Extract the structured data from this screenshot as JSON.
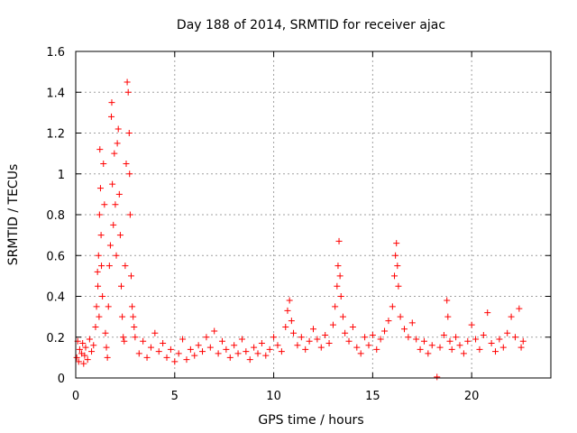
{
  "chart_data": {
    "type": "scatter",
    "title": "Day 188 of 2014, SRMTID for receiver ajac",
    "xlabel": "GPS time / hours",
    "ylabel": "SRMTID / TECUs",
    "xlim": [
      0,
      24
    ],
    "ylim": [
      0,
      1.6
    ],
    "x_ticks": [
      0,
      5,
      10,
      15,
      20
    ],
    "x_tick_labels": [
      "0",
      "5",
      "10",
      "15",
      "20"
    ],
    "y_ticks": [
      0,
      0.2,
      0.4,
      0.6,
      0.8,
      1.0,
      1.2,
      1.4,
      1.6
    ],
    "y_tick_labels": [
      "0",
      "0.2",
      "0.4",
      "0.6",
      "0.8",
      "1",
      "1.2",
      "1.4",
      "1.6"
    ],
    "grid": true,
    "marker": "plus",
    "series": [
      {
        "name": "SRMTID",
        "color": "#ff0000",
        "points": [
          [
            0.05,
            0.1
          ],
          [
            0.1,
            0.18
          ],
          [
            0.15,
            0.08
          ],
          [
            0.2,
            0.14
          ],
          [
            0.3,
            0.12
          ],
          [
            0.35,
            0.17
          ],
          [
            0.4,
            0.07
          ],
          [
            0.45,
            0.11
          ],
          [
            0.5,
            0.15
          ],
          [
            0.6,
            0.09
          ],
          [
            0.7,
            0.19
          ],
          [
            0.8,
            0.13
          ],
          [
            0.9,
            0.16
          ],
          [
            1.0,
            0.25
          ],
          [
            1.05,
            0.35
          ],
          [
            1.1,
            0.52
          ],
          [
            1.12,
            0.45
          ],
          [
            1.15,
            0.6
          ],
          [
            1.18,
            0.3
          ],
          [
            1.2,
            0.8
          ],
          [
            1.22,
            1.12
          ],
          [
            1.25,
            0.93
          ],
          [
            1.28,
            0.7
          ],
          [
            1.3,
            0.55
          ],
          [
            1.35,
            0.4
          ],
          [
            1.4,
            1.05
          ],
          [
            1.45,
            0.85
          ],
          [
            1.5,
            0.22
          ],
          [
            1.55,
            0.15
          ],
          [
            1.6,
            0.1
          ],
          [
            1.65,
            0.35
          ],
          [
            1.7,
            0.55
          ],
          [
            1.75,
            0.65
          ],
          [
            1.8,
            1.28
          ],
          [
            1.82,
            1.35
          ],
          [
            1.85,
            0.95
          ],
          [
            1.9,
            0.75
          ],
          [
            1.95,
            1.1
          ],
          [
            2.0,
            0.85
          ],
          [
            2.05,
            0.6
          ],
          [
            2.1,
            1.15
          ],
          [
            2.15,
            1.22
          ],
          [
            2.2,
            0.9
          ],
          [
            2.25,
            0.7
          ],
          [
            2.3,
            0.45
          ],
          [
            2.35,
            0.3
          ],
          [
            2.4,
            0.2
          ],
          [
            2.45,
            0.18
          ],
          [
            2.5,
            0.55
          ],
          [
            2.55,
            1.05
          ],
          [
            2.6,
            1.45
          ],
          [
            2.65,
            1.4
          ],
          [
            2.7,
            1.2
          ],
          [
            2.72,
            1.0
          ],
          [
            2.75,
            0.8
          ],
          [
            2.8,
            0.5
          ],
          [
            2.85,
            0.35
          ],
          [
            2.9,
            0.3
          ],
          [
            2.95,
            0.25
          ],
          [
            3.0,
            0.2
          ],
          [
            3.2,
            0.12
          ],
          [
            3.4,
            0.18
          ],
          [
            3.6,
            0.1
          ],
          [
            3.8,
            0.15
          ],
          [
            4.0,
            0.22
          ],
          [
            4.2,
            0.13
          ],
          [
            4.4,
            0.17
          ],
          [
            4.6,
            0.1
          ],
          [
            4.8,
            0.14
          ],
          [
            5.0,
            0.08
          ],
          [
            5.2,
            0.12
          ],
          [
            5.4,
            0.19
          ],
          [
            5.6,
            0.09
          ],
          [
            5.8,
            0.14
          ],
          [
            6.0,
            0.11
          ],
          [
            6.2,
            0.16
          ],
          [
            6.4,
            0.13
          ],
          [
            6.6,
            0.2
          ],
          [
            6.8,
            0.15
          ],
          [
            7.0,
            0.23
          ],
          [
            7.2,
            0.12
          ],
          [
            7.4,
            0.18
          ],
          [
            7.6,
            0.14
          ],
          [
            7.8,
            0.1
          ],
          [
            8.0,
            0.16
          ],
          [
            8.2,
            0.12
          ],
          [
            8.4,
            0.19
          ],
          [
            8.6,
            0.13
          ],
          [
            8.8,
            0.09
          ],
          [
            9.0,
            0.15
          ],
          [
            9.2,
            0.12
          ],
          [
            9.4,
            0.17
          ],
          [
            9.6,
            0.11
          ],
          [
            9.8,
            0.14
          ],
          [
            10.0,
            0.2
          ],
          [
            10.2,
            0.16
          ],
          [
            10.4,
            0.13
          ],
          [
            10.6,
            0.25
          ],
          [
            10.7,
            0.33
          ],
          [
            10.8,
            0.38
          ],
          [
            10.9,
            0.28
          ],
          [
            11.0,
            0.22
          ],
          [
            11.2,
            0.16
          ],
          [
            11.4,
            0.2
          ],
          [
            11.6,
            0.14
          ],
          [
            11.8,
            0.18
          ],
          [
            12.0,
            0.24
          ],
          [
            12.2,
            0.19
          ],
          [
            12.4,
            0.15
          ],
          [
            12.6,
            0.21
          ],
          [
            12.8,
            0.17
          ],
          [
            13.0,
            0.26
          ],
          [
            13.1,
            0.35
          ],
          [
            13.2,
            0.45
          ],
          [
            13.25,
            0.55
          ],
          [
            13.3,
            0.67
          ],
          [
            13.35,
            0.5
          ],
          [
            13.4,
            0.4
          ],
          [
            13.5,
            0.3
          ],
          [
            13.6,
            0.22
          ],
          [
            13.8,
            0.18
          ],
          [
            14.0,
            0.25
          ],
          [
            14.2,
            0.15
          ],
          [
            14.4,
            0.12
          ],
          [
            14.6,
            0.2
          ],
          [
            14.8,
            0.16
          ],
          [
            15.0,
            0.21
          ],
          [
            15.2,
            0.14
          ],
          [
            15.4,
            0.19
          ],
          [
            15.6,
            0.23
          ],
          [
            15.8,
            0.28
          ],
          [
            16.0,
            0.35
          ],
          [
            16.1,
            0.5
          ],
          [
            16.15,
            0.6
          ],
          [
            16.2,
            0.66
          ],
          [
            16.25,
            0.55
          ],
          [
            16.3,
            0.45
          ],
          [
            16.4,
            0.3
          ],
          [
            16.6,
            0.24
          ],
          [
            16.8,
            0.2
          ],
          [
            17.0,
            0.27
          ],
          [
            17.2,
            0.19
          ],
          [
            17.4,
            0.14
          ],
          [
            17.6,
            0.18
          ],
          [
            17.8,
            0.12
          ],
          [
            18.0,
            0.16
          ],
          [
            18.25,
            0.005
          ],
          [
            18.4,
            0.15
          ],
          [
            18.6,
            0.21
          ],
          [
            18.75,
            0.38
          ],
          [
            18.8,
            0.3
          ],
          [
            18.9,
            0.18
          ],
          [
            19.0,
            0.14
          ],
          [
            19.2,
            0.2
          ],
          [
            19.4,
            0.16
          ],
          [
            19.6,
            0.12
          ],
          [
            19.8,
            0.18
          ],
          [
            20.0,
            0.26
          ],
          [
            20.2,
            0.19
          ],
          [
            20.4,
            0.14
          ],
          [
            20.6,
            0.21
          ],
          [
            20.8,
            0.32
          ],
          [
            21.0,
            0.17
          ],
          [
            21.2,
            0.13
          ],
          [
            21.4,
            0.19
          ],
          [
            21.6,
            0.15
          ],
          [
            21.8,
            0.22
          ],
          [
            22.0,
            0.3
          ],
          [
            22.2,
            0.2
          ],
          [
            22.4,
            0.34
          ],
          [
            22.5,
            0.15
          ],
          [
            22.6,
            0.18
          ]
        ]
      }
    ]
  }
}
